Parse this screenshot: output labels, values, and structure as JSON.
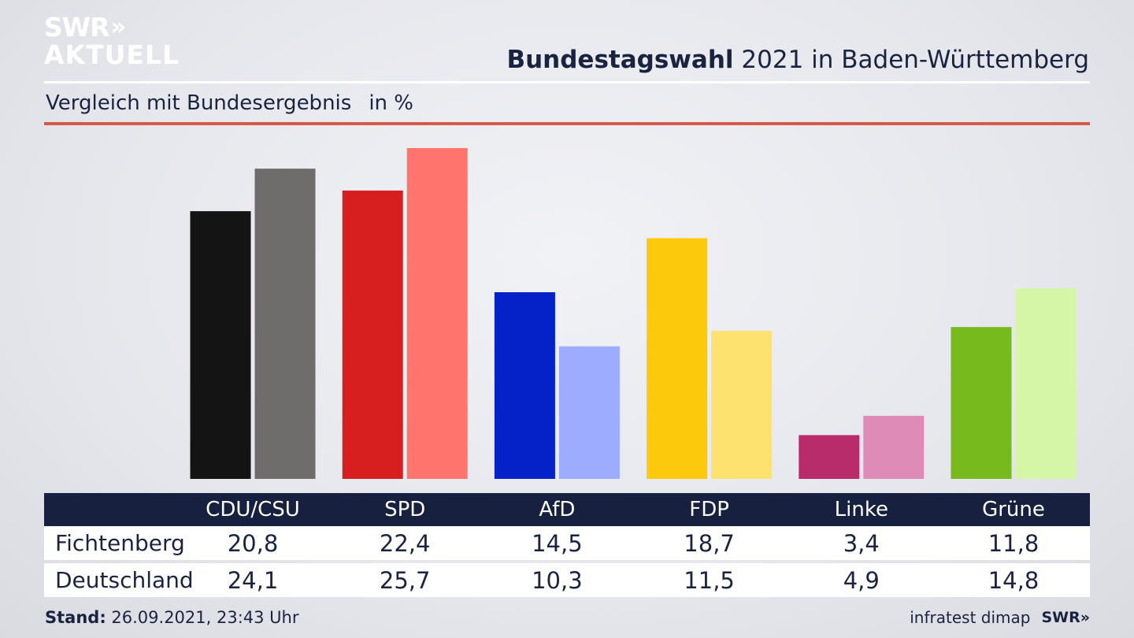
{
  "header": {
    "logo_line1": "SWR",
    "logo_line2": "AKTUELL",
    "logo_chevron": "»",
    "title_bold": "Bundestagswahl",
    "title_rest": " 2021 in Baden-Württemberg",
    "subtitle": "Vergleich mit Bundesergebnis",
    "unit": "in %"
  },
  "chart_data": {
    "type": "bar",
    "categories": [
      "CDU/CSU",
      "SPD",
      "AfD",
      "FDP",
      "Linke",
      "Grüne"
    ],
    "series": [
      {
        "name": "Fichtenberg",
        "values": [
          20.8,
          22.4,
          14.5,
          18.7,
          3.4,
          11.8
        ]
      },
      {
        "name": "Deutschland",
        "values": [
          24.1,
          25.7,
          10.3,
          11.5,
          4.9,
          14.8
        ]
      }
    ],
    "colors": {
      "Fichtenberg": [
        "#141414",
        "#d71f1f",
        "#0521c8",
        "#fcc90d",
        "#b92c6c",
        "#77ba1e"
      ],
      "Deutschland": [
        "#6f6d6b",
        "#ff746d",
        "#9eacff",
        "#fde26f",
        "#df8bb8",
        "#d5f6a7"
      ]
    },
    "ylim": [
      0,
      25.7
    ],
    "grid": false,
    "legend": "table-below"
  },
  "footer": {
    "stand_label": "Stand:",
    "stand_value": " 26.09.2021, 23:43 Uhr",
    "source": "infratest dimap",
    "brand": "SWR»"
  }
}
